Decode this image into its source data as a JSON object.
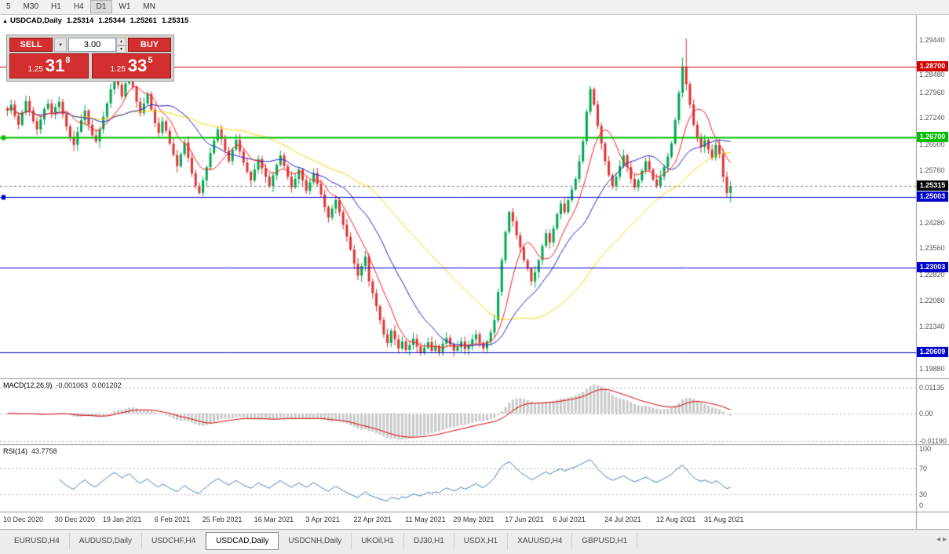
{
  "toolbar": {
    "periods": [
      "5",
      "M30",
      "H1",
      "H4",
      "D1",
      "W1",
      "MN"
    ],
    "active_period": "D1"
  },
  "symbol_header": {
    "symbol": "USDCAD,Daily",
    "open": "1.25314",
    "high": "1.25344",
    "low": "1.25261",
    "close": "1.25315"
  },
  "trade_panel": {
    "sell_label": "SELL",
    "buy_label": "BUY",
    "volume": "3.00",
    "sell_price_prefix": "1.25",
    "sell_price_big": "31",
    "sell_price_sup": "8",
    "buy_price_prefix": "1.25",
    "buy_price_big": "33",
    "buy_price_sup": "5"
  },
  "price_axis": {
    "labels": [
      "1.29440",
      "1.28480",
      "1.27960",
      "1.27240",
      "1.26500",
      "1.25760",
      "1.24280",
      "1.23560",
      "1.22820",
      "1.22080",
      "1.21340",
      "1.19880"
    ],
    "tags": [
      {
        "value": "1.28700",
        "color": "#d40000",
        "interactable": true
      },
      {
        "value": "1.26700",
        "color": "#00c000",
        "interactable": true
      },
      {
        "value": "1.25315",
        "color": "#000000",
        "interactable": false
      },
      {
        "value": "1.25003",
        "color": "#0000cd",
        "interactable": true
      },
      {
        "value": "1.23003",
        "color": "#0000cd",
        "interactable": true
      },
      {
        "value": "1.20609",
        "color": "#0000cd",
        "interactable": true
      }
    ]
  },
  "indicators": {
    "macd": {
      "label": "MACD(12,26,9)",
      "value1": "-0.001063",
      "value2": "0.001202",
      "axis": [
        "0.01135",
        "0.00",
        "-0.01190"
      ]
    },
    "rsi": {
      "label": "RSI(14)",
      "value": "43.7758",
      "axis": [
        "100",
        "70",
        "30",
        "0"
      ],
      "levels": [
        70,
        30
      ]
    }
  },
  "date_axis": {
    "labels": [
      "10 Dec 2020",
      "30 Dec 2020",
      "19 Jan 2021",
      "6 Feb 2021",
      "25 Feb 2021",
      "16 Mar 2021",
      "3 Apr 2021",
      "22 Apr 2021",
      "11 May 2021",
      "29 May 2021",
      "17 Jun 2021",
      "6 Jul 2021",
      "24 Jul 2021",
      "12 Aug 2021",
      "31 Aug 2021"
    ],
    "bar_indices": [
      0,
      14,
      27,
      41,
      54,
      68,
      82,
      95,
      109,
      122,
      136,
      149,
      163,
      177,
      190
    ]
  },
  "tabs": {
    "items": [
      "EURUSD,H4",
      "AUDUSD,Daily",
      "USDCHF,H4",
      "USDCAD,Daily",
      "USDCNH,Daily",
      "UKOil,H1",
      "DJ30,H1",
      "USDX,H1",
      "XAUUSD,H4",
      "GBPUSD,H1"
    ],
    "active": "USDCAD,Daily"
  },
  "icons": {
    "triangle_up": "▲",
    "caret_down": "▾",
    "caret_up": "▴",
    "arrow_left": "◂",
    "arrow_right": "▸"
  },
  "chart_data": {
    "type": "candlestick",
    "symbol": "USDCAD",
    "timeframe": "Daily",
    "ylim": [
      1.1988,
      1.3018
    ],
    "last_price": 1.25315,
    "up_color": "#00a651",
    "down_color": "#e03232",
    "closes": [
      1.2745,
      1.2762,
      1.273,
      1.2705,
      1.274,
      1.2772,
      1.2745,
      1.2715,
      1.2692,
      1.272,
      1.275,
      1.2765,
      1.2738,
      1.2755,
      1.277,
      1.2735,
      1.27,
      1.267,
      1.2648,
      1.2685,
      1.2718,
      1.2745,
      1.2705,
      1.2675,
      1.2658,
      1.2692,
      1.2728,
      1.2765,
      1.2805,
      1.2842,
      1.2818,
      1.2785,
      1.2822,
      1.285,
      1.2812,
      1.277,
      1.2738,
      1.2765,
      1.2792,
      1.2748,
      1.271,
      1.2682,
      1.2715,
      1.2688,
      1.2652,
      1.262,
      1.2588,
      1.2622,
      1.2655,
      1.2612,
      1.2568,
      1.2532,
      1.2512,
      1.2548,
      1.2585,
      1.2625,
      1.266,
      1.2692,
      1.2665,
      1.2632,
      1.2602,
      1.2635,
      1.2662,
      1.263,
      1.2598,
      1.2572,
      1.2548,
      1.2578,
      1.2608,
      1.2582,
      1.2558,
      1.2532,
      1.2562,
      1.2592,
      1.2618,
      1.2588,
      1.2558,
      1.2528,
      1.2552,
      1.2578,
      1.2548,
      1.2518,
      1.2542,
      1.2568,
      1.2538,
      1.2508,
      1.2472,
      1.2442,
      1.2468,
      1.2492,
      1.2458,
      1.2422,
      1.2388,
      1.2352,
      1.2312,
      1.2278,
      1.2305,
      1.2332,
      1.2262,
      1.2228,
      1.2192,
      1.2152,
      1.2112,
      1.2088,
      1.2122,
      1.2098,
      1.2072,
      1.2092,
      1.2068,
      1.2082,
      1.21,
      1.2078,
      1.206,
      1.2074,
      1.209,
      1.2066,
      1.208,
      1.2062,
      1.2086,
      1.2102,
      1.2084,
      1.2066,
      1.2076,
      1.2092,
      1.207,
      1.2082,
      1.2098,
      1.2112,
      1.2088,
      1.2072,
      1.2092,
      1.2118,
      1.2152,
      1.2232,
      1.2322,
      1.2402,
      1.2458,
      1.2432,
      1.2392,
      1.2358,
      1.2322,
      1.2298,
      1.2262,
      1.2288,
      1.2322,
      1.2362,
      1.2398,
      1.2372,
      1.2412,
      1.2452,
      1.2482,
      1.2458,
      1.2492,
      1.2522,
      1.2552,
      1.2602,
      1.2658,
      1.2742,
      1.2806,
      1.2762,
      1.2702,
      1.2652,
      1.2602,
      1.2562,
      1.2532,
      1.2558,
      1.2588,
      1.2618,
      1.2585,
      1.2552,
      1.2528,
      1.2548,
      1.2575,
      1.2602,
      1.2578,
      1.255,
      1.2532,
      1.2558,
      1.2585,
      1.2615,
      1.2652,
      1.2718,
      1.2795,
      1.2868,
      1.282,
      1.2762,
      1.2705,
      1.2668,
      1.2642,
      1.2662,
      1.2635,
      1.2612,
      1.2648,
      1.2622,
      1.2558,
      1.2512,
      1.25315
    ],
    "overrides": {
      "112": {
        "low": 1.2052
      },
      "158": {
        "high": 1.2815
      },
      "183": {
        "high": 1.2895
      },
      "184": {
        "high": 1.2949
      },
      "196": {
        "low": 1.2486
      }
    },
    "hlines": [
      {
        "price": 1.287,
        "color": "#d40000",
        "width": 1,
        "marker": false
      },
      {
        "price": 1.267,
        "color": "#00c000",
        "width": 2,
        "marker": true
      },
      {
        "price": 1.25003,
        "color": "#0000cd",
        "width": 1,
        "marker": true
      },
      {
        "price": 1.23003,
        "color": "#0000cd",
        "width": 1,
        "marker": false
      },
      {
        "price": 1.20609,
        "color": "#0000cd",
        "width": 1,
        "marker": false
      }
    ],
    "moving_averages": [
      {
        "period": 8,
        "color": "#ff1a1a"
      },
      {
        "period": 20,
        "color": "#2323cc"
      },
      {
        "period": 45,
        "color": "#ffd400"
      }
    ],
    "macd_colors": {
      "hist": "#c9c9c9",
      "signal": "#d40000"
    },
    "rsi_color": "#4a7ebb",
    "bid_line_color": "#808080"
  }
}
